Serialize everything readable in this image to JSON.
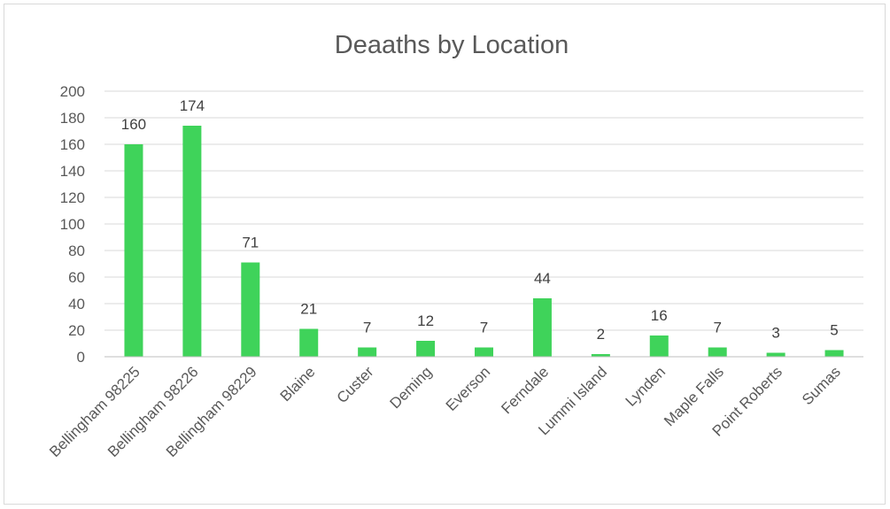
{
  "chart_data": {
    "type": "bar",
    "title": "Deaaths by Location",
    "xlabel": "",
    "ylabel": "",
    "ylim": [
      0,
      200
    ],
    "yticks": [
      0,
      20,
      40,
      60,
      80,
      100,
      120,
      140,
      160,
      180,
      200
    ],
    "grid": true,
    "legend": "none",
    "bar_color": "#3fd35a",
    "categories": [
      "Bellingham 98225",
      "Bellingham 98226",
      "Bellingham 98229",
      "Blaine",
      "Custer",
      "Deming",
      "Everson",
      "Ferndale",
      "Lummi Island",
      "Lynden",
      "Maple Falls",
      "Point Roberts",
      "Sumas"
    ],
    "values": [
      160,
      174,
      71,
      21,
      7,
      12,
      7,
      44,
      2,
      16,
      7,
      3,
      5
    ]
  }
}
